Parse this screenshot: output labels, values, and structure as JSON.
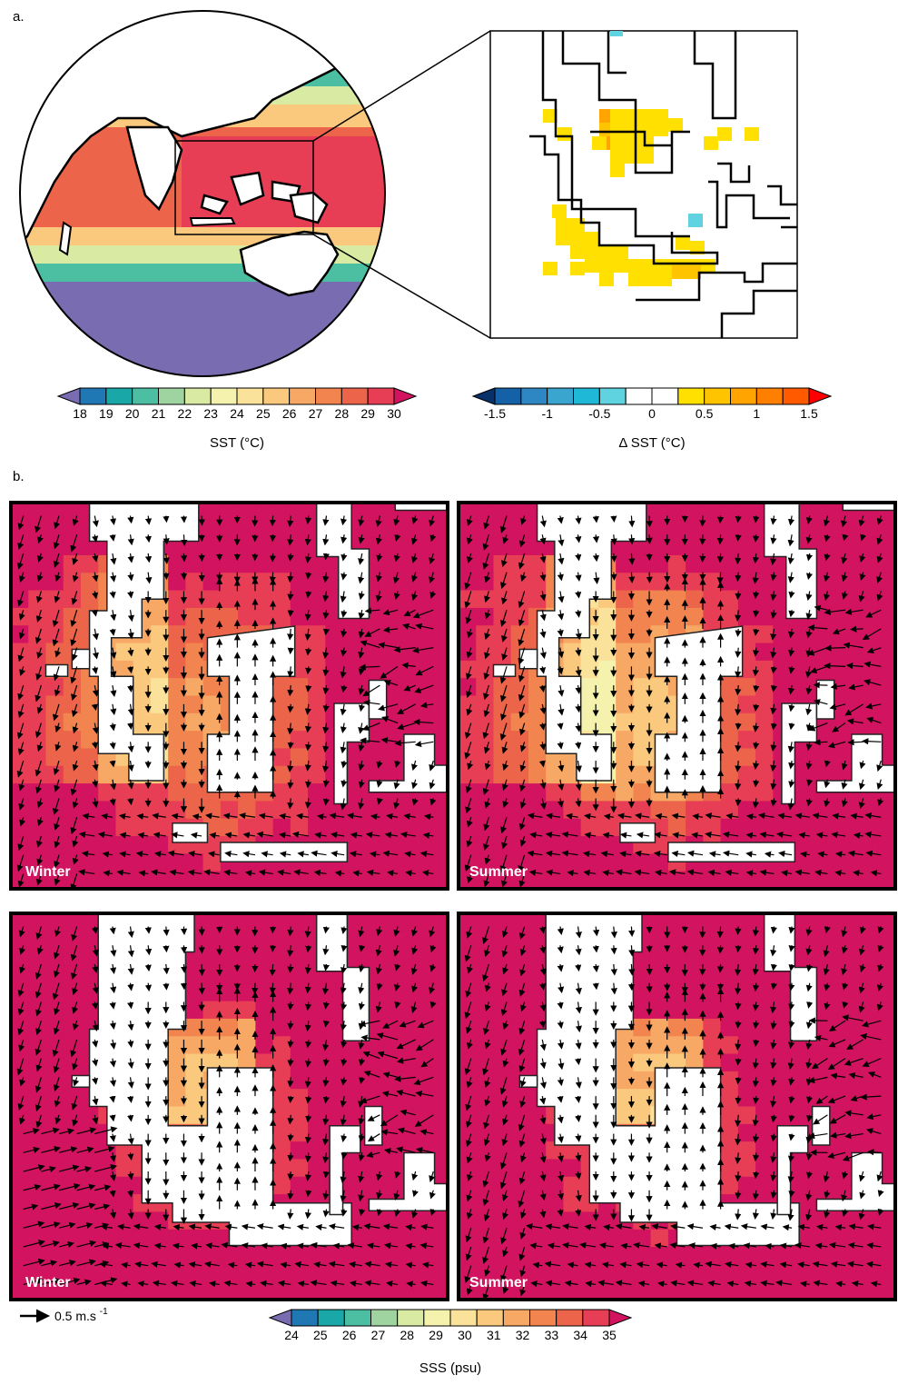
{
  "panel_a_label": "a.",
  "panel_b_label": "b.",
  "colors": {
    "sst_scale": [
      "#7a6cb0",
      "#1f78b4",
      "#1aa7a7",
      "#4cbfa3",
      "#9fd4a0",
      "#d9eaa3",
      "#f5f2ae",
      "#fbe29a",
      "#fbc97e",
      "#f7a865",
      "#f2854f",
      "#ec6449",
      "#e83e55",
      "#d2135f"
    ],
    "dsst_scale": [
      "#08306b",
      "#1461a8",
      "#2e87c2",
      "#3aa6cf",
      "#1fb8d6",
      "#5fd3df",
      "#ffffff",
      "#ffffff",
      "#ffe000",
      "#ffc400",
      "#ffa400",
      "#ff8000",
      "#ff5a00",
      "#ff0000"
    ],
    "sss_scale": [
      "#7a6cb0",
      "#1f78b4",
      "#1aa7a7",
      "#4cbfa3",
      "#9fd4a0",
      "#d9eaa3",
      "#f5f2ae",
      "#fbe29a",
      "#fbc97e",
      "#f7a865",
      "#f2854f",
      "#ec6449",
      "#e83e55",
      "#d2135f"
    ]
  },
  "sst_colorbar": {
    "ticks": [
      "18",
      "19",
      "20",
      "21",
      "22",
      "23",
      "24",
      "25",
      "26",
      "27",
      "28",
      "29",
      "30"
    ],
    "label": "SST (°C)"
  },
  "dsst_colorbar": {
    "ticks": [
      "-1.5",
      "-1",
      "-0.5",
      "0",
      "0.5",
      "1",
      "1.5"
    ],
    "label": "Δ SST (°C)"
  },
  "sss_colorbar": {
    "ticks": [
      "24",
      "25",
      "26",
      "27",
      "28",
      "29",
      "30",
      "31",
      "32",
      "33",
      "34",
      "35"
    ],
    "label": "SSS (psu)"
  },
  "map_panels": [
    {
      "season": "Winter"
    },
    {
      "season": "Summer"
    },
    {
      "season": "Winter"
    },
    {
      "season": "Summer"
    }
  ],
  "vector_legend": {
    "label": "0.5 m.s",
    "exponent": "-1"
  }
}
